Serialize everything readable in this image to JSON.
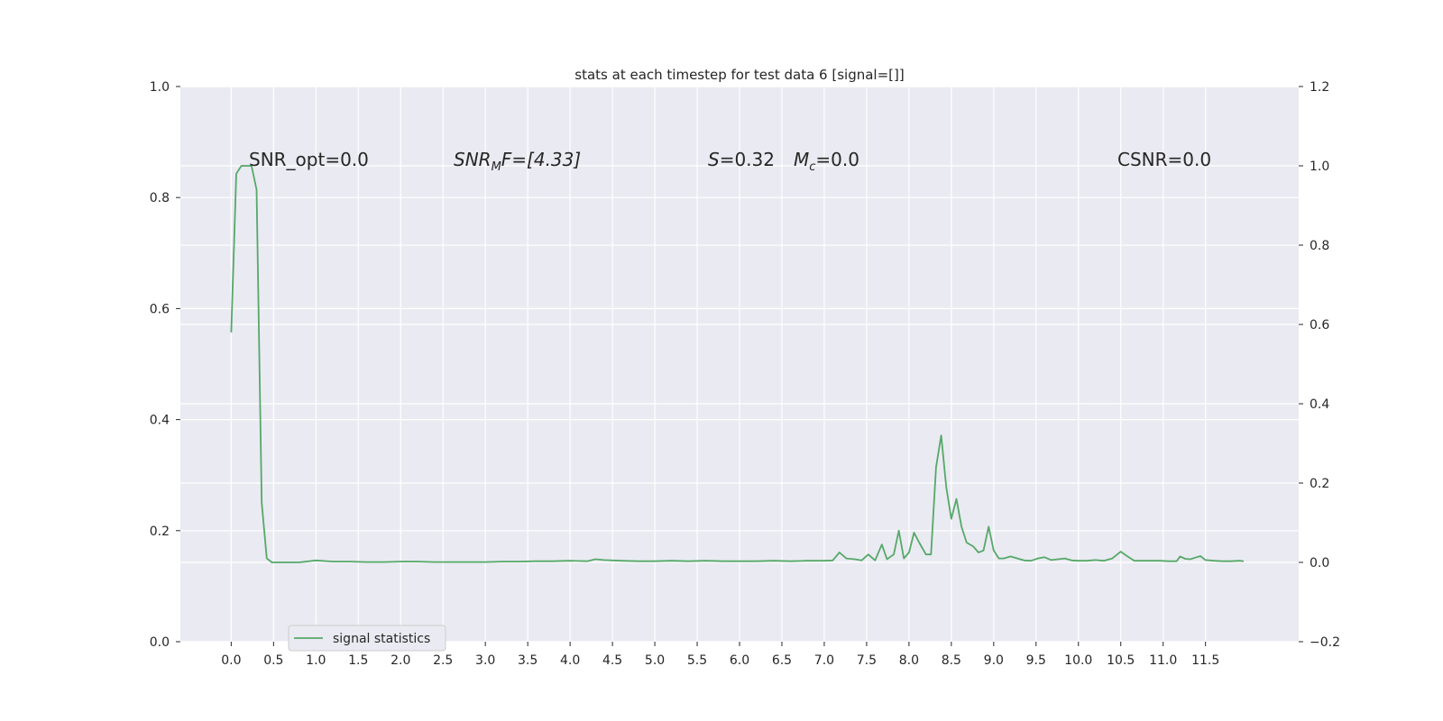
{
  "chart_data": {
    "type": "line",
    "title": "stats at each timestep for test data 6 [signal=[]]",
    "xlabel": "",
    "ylabel": "",
    "xlim": [
      -0.6,
      12.6
    ],
    "ylim": [
      0.0,
      1.0
    ],
    "y2lim": [
      -0.2,
      1.2
    ],
    "grid": true,
    "legend_placement": "lower-left",
    "x_ticks": [
      "0.0",
      "0.5",
      "1.0",
      "1.5",
      "2.0",
      "2.5",
      "3.0",
      "3.5",
      "4.0",
      "4.5",
      "5.0",
      "5.5",
      "6.0",
      "6.5",
      "7.0",
      "7.5",
      "8.0",
      "8.5",
      "9.0",
      "9.5",
      "10.0",
      "10.5",
      "11.0",
      "11.5"
    ],
    "y_ticks": [
      "0.0",
      "0.2",
      "0.4",
      "0.6",
      "0.8",
      "1.0"
    ],
    "y2_ticks": [
      "−0.2",
      "0.0",
      "0.2",
      "0.4",
      "0.6",
      "0.8",
      "1.0",
      "1.2"
    ],
    "annotations": {
      "snr_opt": "SNR_opt=0.0",
      "snr_mf_main": "SNR",
      "snr_mf_sub": "M",
      "snr_mf_rest": "F=[4.33]",
      "s_main": "S",
      "s_rest": "=0.32",
      "mc_main": "M",
      "mc_sub": "c",
      "mc_rest": "=0.0",
      "csnr": "CSNR=0.0"
    },
    "series": [
      {
        "name": "signal statistics",
        "color": "#55a868",
        "axis": "right",
        "x": [
          0.0,
          0.06,
          0.12,
          0.18,
          0.24,
          0.3,
          0.36,
          0.42,
          0.48,
          0.54,
          0.6,
          0.8,
          1.0,
          1.2,
          1.4,
          1.6,
          1.8,
          2.0,
          2.2,
          2.4,
          2.6,
          2.8,
          3.0,
          3.2,
          3.4,
          3.6,
          3.8,
          4.0,
          4.2,
          4.3,
          4.4,
          4.6,
          4.8,
          5.0,
          5.2,
          5.4,
          5.6,
          5.8,
          6.0,
          6.2,
          6.4,
          6.6,
          6.8,
          7.0,
          7.1,
          7.18,
          7.26,
          7.36,
          7.44,
          7.52,
          7.6,
          7.68,
          7.74,
          7.82,
          7.88,
          7.94,
          8.0,
          8.06,
          8.12,
          8.2,
          8.26,
          8.32,
          8.38,
          8.44,
          8.5,
          8.56,
          8.62,
          8.68,
          8.76,
          8.82,
          8.88,
          8.94,
          9.0,
          9.06,
          9.12,
          9.2,
          9.28,
          9.36,
          9.44,
          9.52,
          9.6,
          9.68,
          9.76,
          9.84,
          9.92,
          10.0,
          10.1,
          10.2,
          10.3,
          10.4,
          10.5,
          10.58,
          10.66,
          10.76,
          10.86,
          10.96,
          11.06,
          11.16,
          11.2,
          11.26,
          11.32,
          11.38,
          11.44,
          11.5,
          11.6,
          11.7,
          11.8,
          11.9,
          11.95
        ],
        "values": [
          0.58,
          0.98,
          1.0,
          1.0,
          1.0,
          0.94,
          0.15,
          0.01,
          0.0,
          0.0,
          0.0,
          0.0,
          0.005,
          0.002,
          0.002,
          0.001,
          0.001,
          0.002,
          0.002,
          0.001,
          0.001,
          0.001,
          0.001,
          0.002,
          0.002,
          0.003,
          0.003,
          0.004,
          0.003,
          0.008,
          0.006,
          0.004,
          0.003,
          0.003,
          0.004,
          0.003,
          0.004,
          0.003,
          0.003,
          0.003,
          0.004,
          0.003,
          0.004,
          0.004,
          0.005,
          0.025,
          0.01,
          0.008,
          0.005,
          0.02,
          0.005,
          0.045,
          0.008,
          0.02,
          0.08,
          0.01,
          0.025,
          0.075,
          0.05,
          0.02,
          0.02,
          0.24,
          0.32,
          0.19,
          0.11,
          0.16,
          0.09,
          0.05,
          0.04,
          0.025,
          0.03,
          0.09,
          0.03,
          0.01,
          0.01,
          0.015,
          0.01,
          0.005,
          0.004,
          0.01,
          0.013,
          0.006,
          0.008,
          0.01,
          0.005,
          0.004,
          0.004,
          0.006,
          0.004,
          0.01,
          0.027,
          0.015,
          0.004,
          0.004,
          0.004,
          0.004,
          0.003,
          0.003,
          0.015,
          0.009,
          0.008,
          0.012,
          0.016,
          0.006,
          0.004,
          0.003,
          0.003,
          0.004,
          0.003
        ]
      }
    ]
  }
}
